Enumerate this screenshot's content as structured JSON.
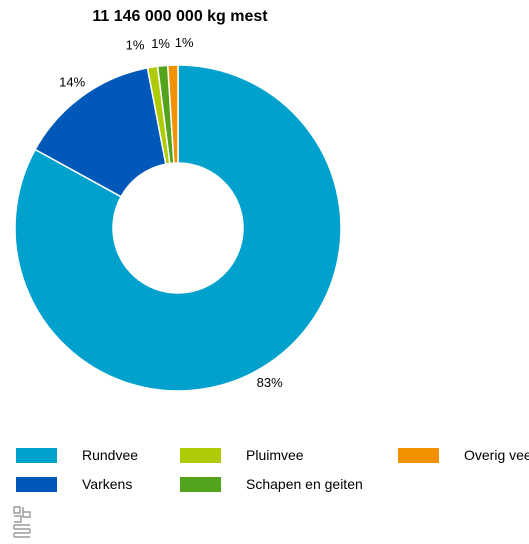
{
  "chart_data": {
    "type": "pie",
    "title": "11 146 000 000 kg mest",
    "slices": [
      {
        "name": "Rundvee",
        "value": 83,
        "label": "83%",
        "color": "#00a1cd"
      },
      {
        "name": "Varkens",
        "value": 14,
        "label": "14%",
        "color": "#0058b8"
      },
      {
        "name": "Pluimvee",
        "value": 1,
        "label": "1%",
        "color": "#afcb05"
      },
      {
        "name": "Schapen en geiten",
        "value": 1,
        "label": "1%",
        "color": "#53a31d"
      },
      {
        "name": "Overig vee",
        "value": 1,
        "label": "1%",
        "color": "#f39200"
      }
    ],
    "legend_placement": "bottom"
  },
  "logo": {
    "icon": "cbs-logo-icon"
  }
}
